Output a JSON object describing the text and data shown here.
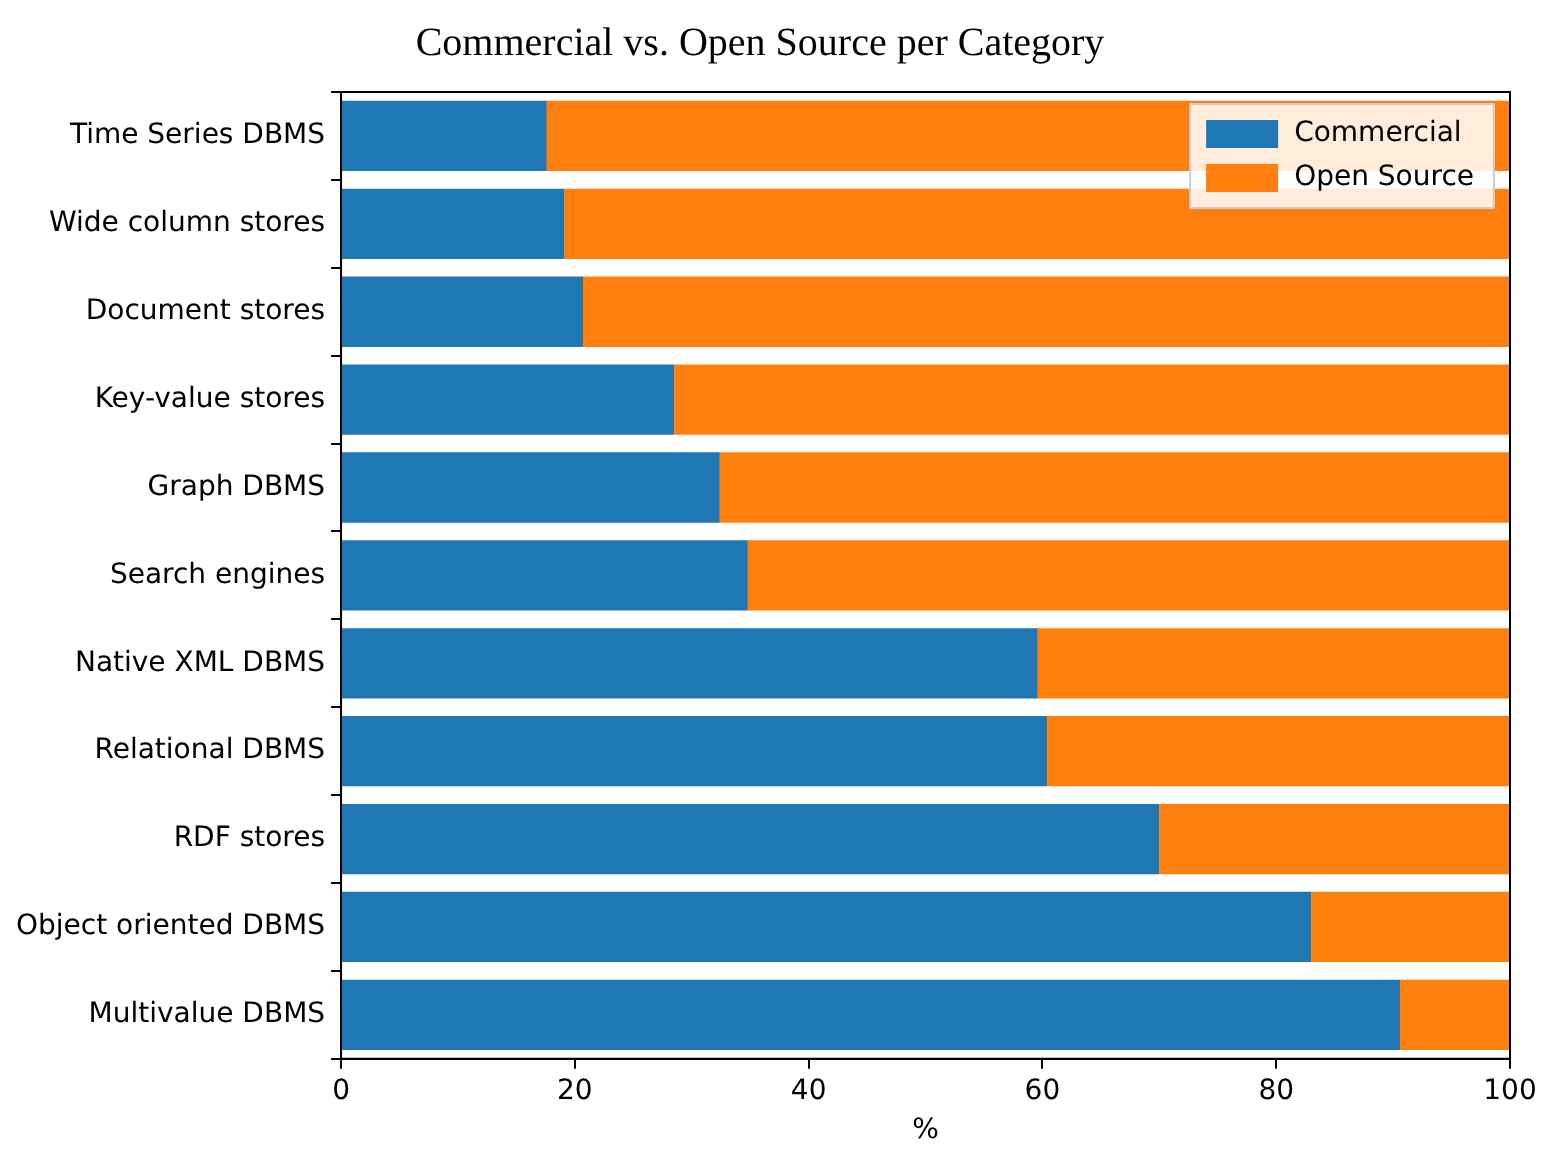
{
  "chart_data": {
    "type": "bar",
    "orientation": "horizontal",
    "stacked": true,
    "title": "Commercial vs. Open Source per Category",
    "xlabel": "%",
    "categories": [
      "Time Series DBMS",
      "Wide column stores",
      "Document stores",
      "Key-value stores",
      "Graph DBMS",
      "Search engines",
      "Native XML DBMS",
      "Relational DBMS",
      "RDF stores",
      "Object oriented DBMS",
      "Multivalue DBMS"
    ],
    "series": [
      {
        "name": "Commercial",
        "color": "#1f77b4",
        "values": [
          17.6,
          19.1,
          20.7,
          28.5,
          32.4,
          34.8,
          59.6,
          60.4,
          70.0,
          83.0,
          90.6
        ]
      },
      {
        "name": "Open Source",
        "color": "#ff7f0e",
        "values": [
          82.4,
          80.9,
          79.3,
          71.5,
          67.6,
          65.2,
          40.4,
          39.6,
          30.0,
          17.0,
          9.4
        ]
      }
    ],
    "xlim": [
      0,
      100
    ],
    "xticks": [
      0,
      20,
      40,
      60,
      80,
      100
    ],
    "grid": false,
    "legend": "top right"
  }
}
